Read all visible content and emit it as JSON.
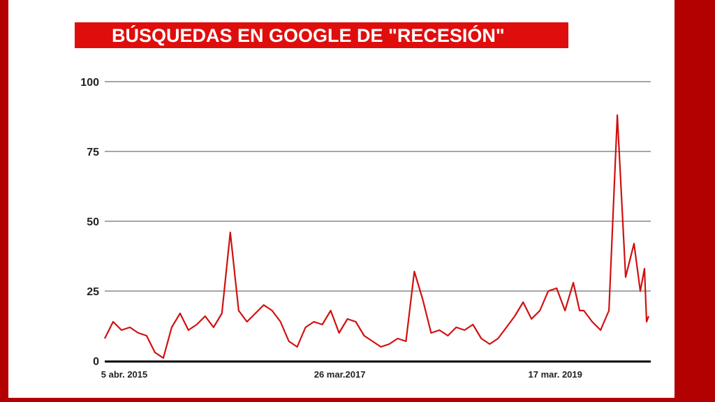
{
  "colors": {
    "frame": "#b30000",
    "title_bg": "#e00d0d",
    "line": "#d01010",
    "grid": "#a6a6a6",
    "axis": "#000000"
  },
  "chart_data": {
    "type": "line",
    "title": "BÚSQUEDAS EN GOOGLE DE \"RECESIÓN\"",
    "xlabel": "",
    "ylabel": "",
    "ylim": [
      0,
      100
    ],
    "yticks": [
      0,
      25,
      50,
      75,
      100
    ],
    "xlim": [
      "2015-04-05",
      "2020-04-05"
    ],
    "xticks": [
      {
        "date": "2015-04-05",
        "label": "5 abr. 2015"
      },
      {
        "date": "2017-03-26",
        "label": "26 mar.2017"
      },
      {
        "date": "2019-03-17",
        "label": "17 mar. 2019"
      }
    ],
    "grid": true,
    "legend": "none",
    "series": [
      {
        "x": [
          "2015-04-05",
          "2015-05-03",
          "2015-05-31",
          "2015-06-28",
          "2015-07-26",
          "2015-08-23",
          "2015-09-20",
          "2015-10-18",
          "2015-11-15",
          "2015-12-13",
          "2016-01-10",
          "2016-02-07",
          "2016-03-06",
          "2016-04-03",
          "2016-05-01",
          "2016-05-29",
          "2016-06-26",
          "2016-07-24",
          "2016-08-21",
          "2016-09-18",
          "2016-10-16",
          "2016-11-13",
          "2016-12-11",
          "2017-01-08",
          "2017-02-05",
          "2017-03-05",
          "2017-04-02",
          "2017-04-30",
          "2017-05-28",
          "2017-06-25",
          "2017-07-23",
          "2017-08-20",
          "2017-09-17",
          "2017-10-15",
          "2017-11-12",
          "2017-12-10",
          "2018-01-07",
          "2018-02-04",
          "2018-03-04",
          "2018-04-01",
          "2018-04-29",
          "2018-05-27",
          "2018-06-24",
          "2018-07-22",
          "2018-08-19",
          "2018-09-16",
          "2018-10-14",
          "2018-11-11",
          "2018-12-09",
          "2019-01-06",
          "2019-02-03",
          "2019-03-03",
          "2019-03-31",
          "2019-04-28",
          "2019-05-26",
          "2019-06-23",
          "2019-07-21",
          "2019-08-11",
          "2019-08-25",
          "2019-09-22",
          "2019-10-20",
          "2019-11-17",
          "2019-12-15",
          "2020-01-12",
          "2020-02-09",
          "2020-03-01",
          "2020-03-15",
          "2020-03-22",
          "2020-03-29"
        ],
        "values": [
          8,
          14,
          11,
          12,
          10,
          9,
          3,
          1,
          12,
          17,
          11,
          13,
          16,
          12,
          17,
          46,
          18,
          14,
          17,
          20,
          18,
          14,
          7,
          5,
          12,
          14,
          13,
          18,
          10,
          15,
          14,
          9,
          7,
          5,
          6,
          8,
          7,
          32,
          22,
          10,
          11,
          9,
          12,
          11,
          13,
          8,
          6,
          8,
          12,
          16,
          21,
          15,
          18,
          25,
          26,
          18,
          28,
          18,
          18,
          14,
          11,
          18,
          88,
          30,
          42,
          25,
          33,
          14,
          16
        ]
      }
    ]
  }
}
